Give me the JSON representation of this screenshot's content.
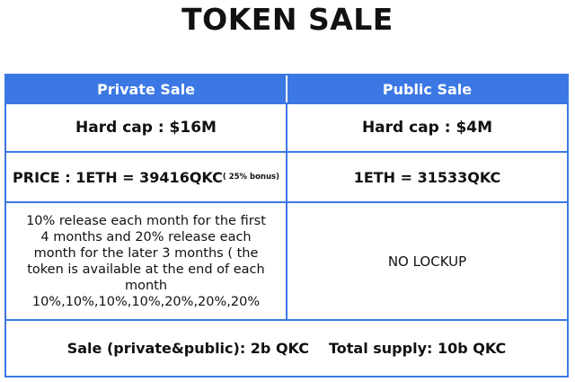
{
  "title": "TOKEN SALE",
  "colors": {
    "accent": "#3c78e4",
    "header_text": "#ffffff",
    "body_text": "#111111"
  },
  "table": {
    "headers": {
      "private": "Private Sale",
      "public": "Public Sale"
    },
    "hard_cap": {
      "private": "Hard cap : $16M",
      "public": "Hard cap : $4M"
    },
    "price": {
      "private": "PRICE : 1ETH = 39416QKC",
      "private_bonus": "( 25% bonus)",
      "public": "1ETH = 31533QKC"
    },
    "lockup": {
      "private": "10% release each month for the first 4 months and 20% release each month for the later 3 months ( the token is available at the end of each month 10%,10%,10%,10%,20%,20%,20%",
      "public": "NO LOCKUP"
    },
    "footer": {
      "sale": "Sale (private&public): 2b QKC",
      "supply": "Total supply: 10b QKC"
    }
  }
}
